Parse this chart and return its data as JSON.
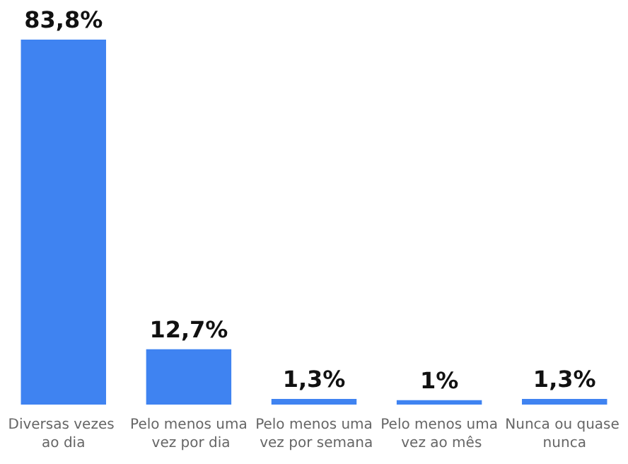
{
  "chart_data": {
    "type": "bar",
    "categories": [
      "Diversas vezes ao dia",
      "Pelo menos uma vez por dia",
      "Pelo menos uma vez por semana",
      "Pelo menos uma vez ao mês",
      "Nunca ou quase nunca"
    ],
    "values": [
      83.8,
      12.7,
      1.3,
      1,
      1.3
    ],
    "value_labels": [
      "83,8%",
      "12,7%",
      "1,3%",
      "1%",
      "1,3%"
    ],
    "color": "#3f83f1"
  }
}
